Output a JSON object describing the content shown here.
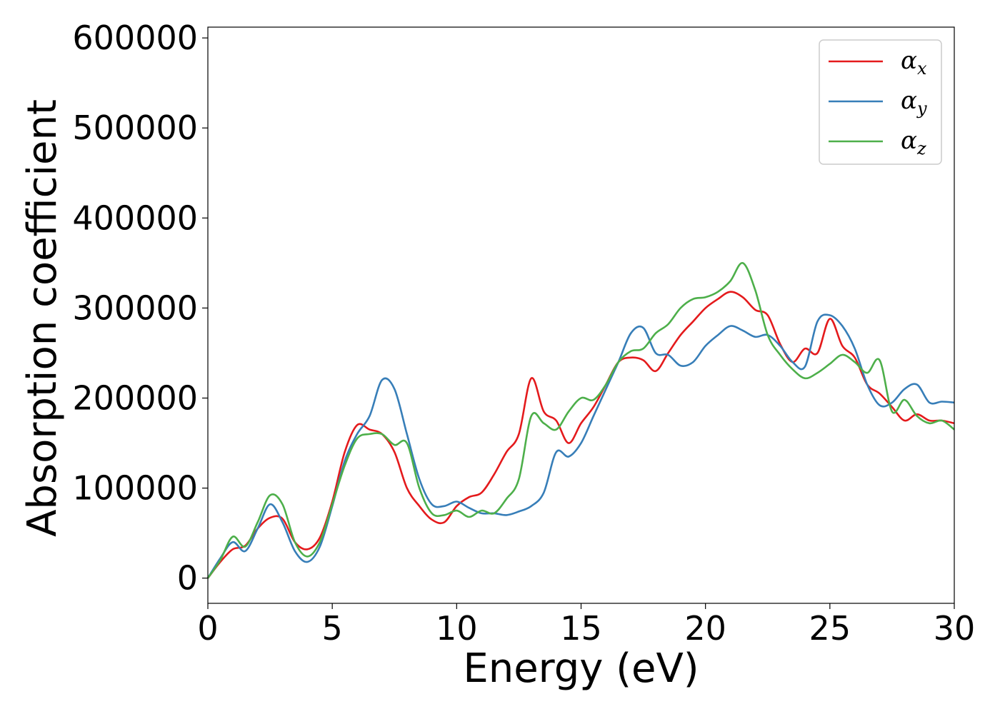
{
  "chart_data": {
    "type": "line",
    "xlabel": "Energy (eV)",
    "ylabel": "Absorption coefficient",
    "xlim": [
      0,
      30
    ],
    "ylim": [
      -28000,
      612000
    ],
    "xticks": [
      0,
      5,
      10,
      15,
      20,
      25,
      30
    ],
    "xtick_labels": [
      "0",
      "5",
      "10",
      "15",
      "20",
      "25",
      "30"
    ],
    "yticks": [
      0,
      100000,
      200000,
      300000,
      400000,
      500000,
      600000
    ],
    "ytick_labels": [
      "0",
      "100000",
      "200000",
      "300000",
      "400000",
      "500000",
      "600000"
    ],
    "grid": false,
    "legend_position": "top-right",
    "series": [
      {
        "name": "α",
        "subscript": "x",
        "color": "#e41a1c",
        "x": [
          0,
          0.5,
          1.0,
          1.5,
          2.0,
          2.5,
          3.0,
          3.5,
          4.0,
          4.5,
          5.0,
          5.5,
          6.0,
          6.5,
          7.0,
          7.5,
          8.0,
          8.5,
          9.0,
          9.5,
          10.0,
          10.5,
          11.0,
          11.5,
          12.0,
          12.5,
          13.0,
          13.5,
          14.0,
          14.5,
          15.0,
          15.5,
          16.0,
          16.5,
          17.0,
          17.5,
          18.0,
          18.5,
          19.0,
          19.5,
          20.0,
          20.5,
          21.0,
          21.5,
          22.0,
          22.5,
          23.0,
          23.5,
          24.0,
          24.5,
          25.0,
          25.5,
          26.0,
          26.5,
          27.0,
          27.5,
          28.0,
          28.5,
          29.0,
          29.5,
          30.0
        ],
        "y": [
          0,
          18000,
          32000,
          36000,
          55000,
          67000,
          66000,
          40000,
          32000,
          45000,
          85000,
          140000,
          170000,
          165000,
          160000,
          140000,
          100000,
          80000,
          65000,
          62000,
          80000,
          90000,
          95000,
          115000,
          140000,
          160000,
          222000,
          185000,
          175000,
          150000,
          172000,
          190000,
          215000,
          240000,
          245000,
          242000,
          230000,
          250000,
          270000,
          285000,
          300000,
          310000,
          318000,
          312000,
          298000,
          292000,
          260000,
          240000,
          255000,
          250000,
          288000,
          258000,
          245000,
          215000,
          205000,
          190000,
          175000,
          182000,
          175000,
          175000,
          172000
        ]
      },
      {
        "name": "α",
        "subscript": "y",
        "color": "#377eb8",
        "x": [
          0,
          0.5,
          1.0,
          1.5,
          2.0,
          2.5,
          3.0,
          3.5,
          4.0,
          4.5,
          5.0,
          5.5,
          6.0,
          6.5,
          7.0,
          7.5,
          8.0,
          8.5,
          9.0,
          9.5,
          10.0,
          10.5,
          11.0,
          11.5,
          12.0,
          12.5,
          13.0,
          13.5,
          14.0,
          14.5,
          15.0,
          15.5,
          16.0,
          16.5,
          17.0,
          17.5,
          18.0,
          18.5,
          19.0,
          19.5,
          20.0,
          20.5,
          21.0,
          21.5,
          22.0,
          22.5,
          23.0,
          23.5,
          24.0,
          24.5,
          25.0,
          25.5,
          26.0,
          26.5,
          27.0,
          27.5,
          28.0,
          28.5,
          29.0,
          29.5,
          30.0
        ],
        "y": [
          0,
          22000,
          40000,
          30000,
          55000,
          82000,
          62000,
          30000,
          18000,
          35000,
          80000,
          130000,
          160000,
          180000,
          220000,
          210000,
          160000,
          110000,
          82000,
          80000,
          85000,
          78000,
          72000,
          72000,
          70000,
          74000,
          80000,
          95000,
          140000,
          135000,
          150000,
          180000,
          210000,
          240000,
          272000,
          278000,
          250000,
          248000,
          236000,
          240000,
          258000,
          270000,
          280000,
          275000,
          268000,
          270000,
          258000,
          240000,
          235000,
          285000,
          292000,
          280000,
          255000,
          215000,
          192000,
          195000,
          210000,
          215000,
          195000,
          196000,
          195000
        ]
      },
      {
        "name": "α",
        "subscript": "z",
        "color": "#4daf4a",
        "x": [
          0,
          0.5,
          1.0,
          1.5,
          2.0,
          2.5,
          3.0,
          3.5,
          4.0,
          4.5,
          5.0,
          5.5,
          6.0,
          6.5,
          7.0,
          7.5,
          8.0,
          8.5,
          9.0,
          9.5,
          10.0,
          10.5,
          11.0,
          11.5,
          12.0,
          12.5,
          13.0,
          13.5,
          14.0,
          14.5,
          15.0,
          15.5,
          16.0,
          16.5,
          17.0,
          17.5,
          18.0,
          18.5,
          19.0,
          19.5,
          20.0,
          20.5,
          21.0,
          21.5,
          22.0,
          22.5,
          23.0,
          23.5,
          24.0,
          24.5,
          25.0,
          25.5,
          26.0,
          26.5,
          27.0,
          27.5,
          28.0,
          28.5,
          29.0,
          29.5,
          30.0
        ],
        "y": [
          0,
          20000,
          46000,
          35000,
          62000,
          92000,
          82000,
          40000,
          24000,
          40000,
          82000,
          125000,
          155000,
          160000,
          160000,
          148000,
          150000,
          100000,
          72000,
          70000,
          75000,
          68000,
          75000,
          72000,
          88000,
          110000,
          180000,
          172000,
          165000,
          185000,
          200000,
          198000,
          215000,
          240000,
          252000,
          255000,
          272000,
          282000,
          300000,
          310000,
          312000,
          318000,
          330000,
          350000,
          320000,
          270000,
          248000,
          232000,
          222000,
          228000,
          238000,
          248000,
          240000,
          228000,
          242000,
          185000,
          198000,
          180000,
          172000,
          175000,
          165000
        ]
      }
    ]
  }
}
